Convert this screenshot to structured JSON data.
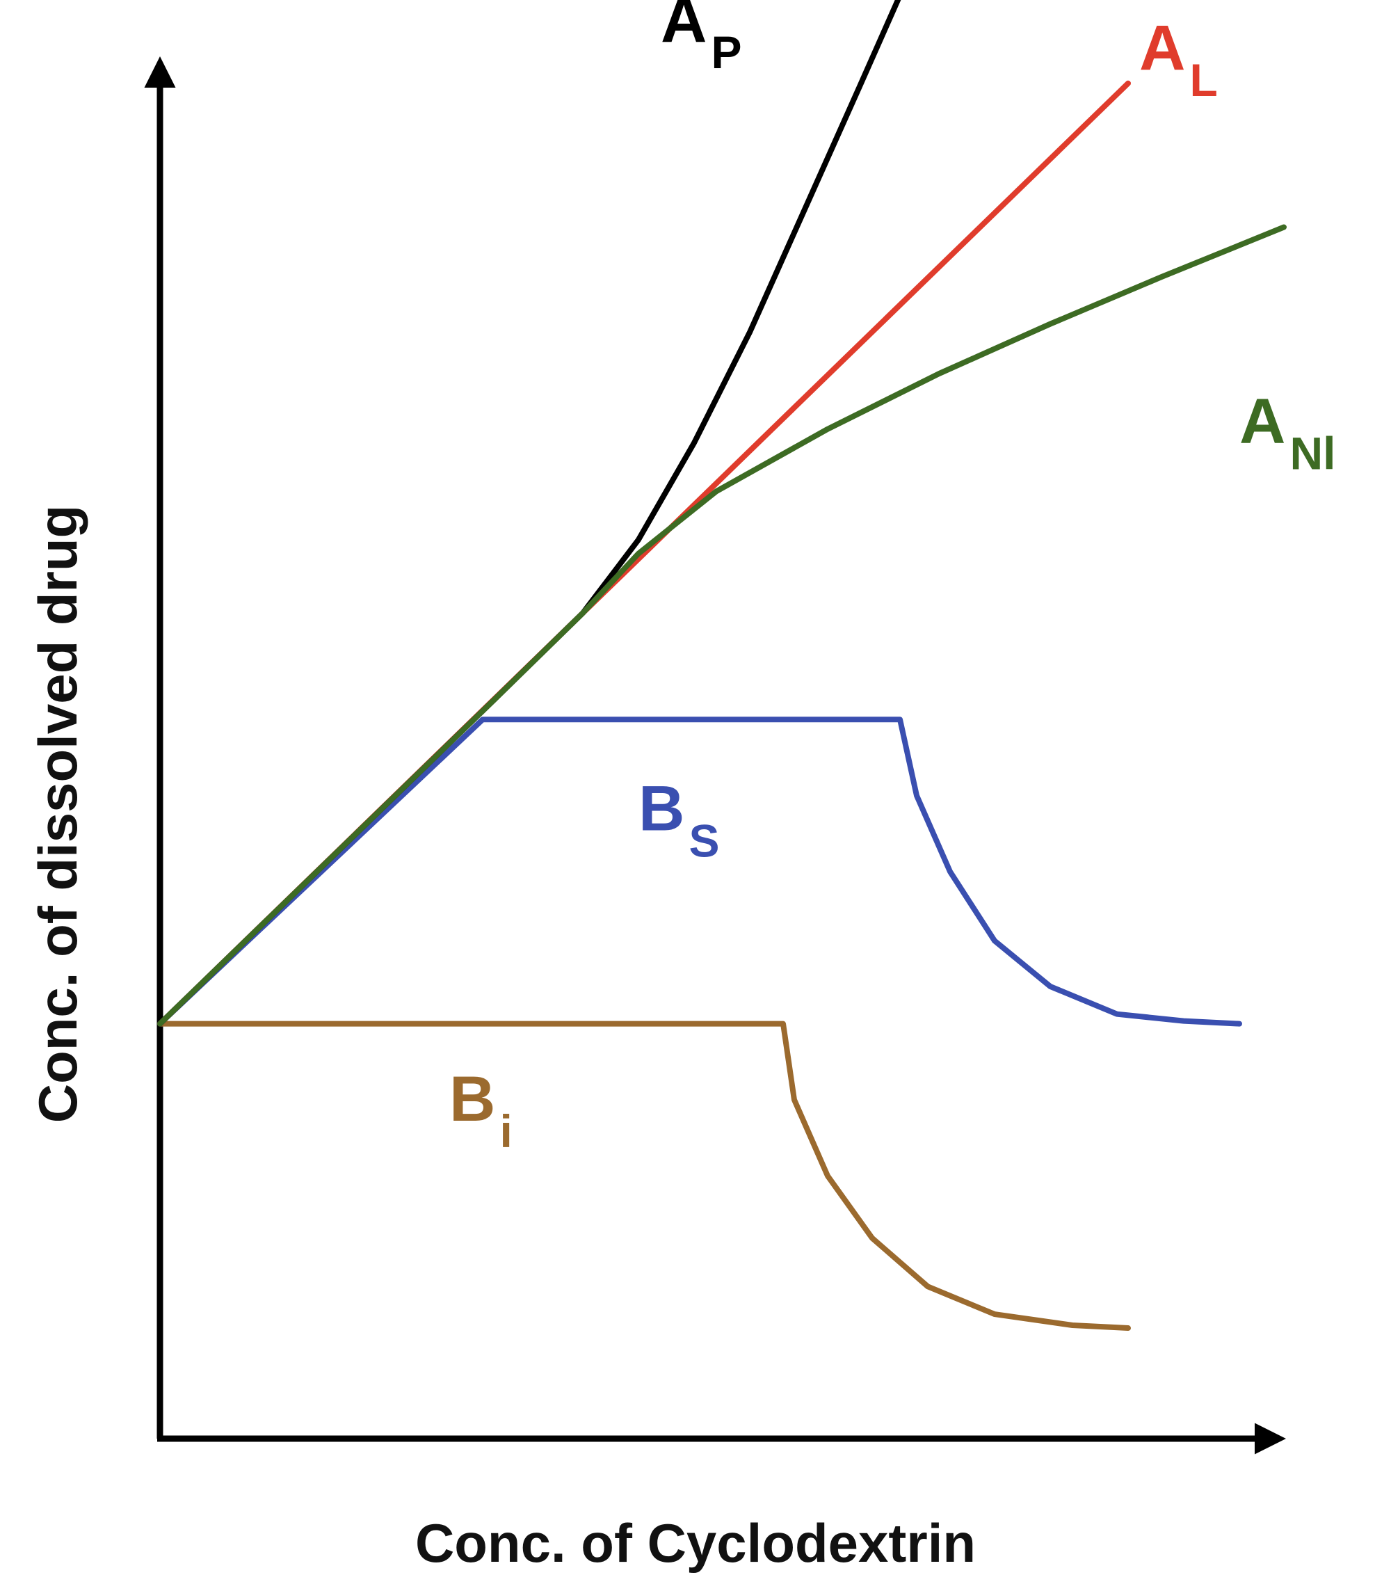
{
  "chart_data": {
    "type": "line",
    "title": "",
    "xlabel": "Conc. of Cyclodextrin",
    "ylabel": "Conc. of dissolved drug",
    "xlim": [
      0,
      10
    ],
    "ylim": [
      0,
      10
    ],
    "grid": false,
    "legend": "none",
    "series": [
      {
        "name": "A",
        "subscript": "P",
        "color": "#000000",
        "points": [
          [
            0,
            3
          ],
          [
            1,
            3.78
          ],
          [
            2,
            4.56
          ],
          [
            3,
            5.34
          ],
          [
            3.8,
            5.97
          ],
          [
            4.3,
            6.5
          ],
          [
            4.8,
            7.2
          ],
          [
            5.3,
            8.0
          ],
          [
            5.8,
            8.9
          ],
          [
            6.3,
            9.8
          ],
          [
            6.85,
            10.8
          ]
        ]
      },
      {
        "name": "A",
        "subscript": "L",
        "color": "#e03c2c",
        "points": [
          [
            0,
            3
          ],
          [
            8.7,
            9.8
          ]
        ]
      },
      {
        "name": "A",
        "subscript": "Nl",
        "color": "#3d6b23",
        "points": [
          [
            0,
            3
          ],
          [
            1,
            3.78
          ],
          [
            2,
            4.56
          ],
          [
            3,
            5.34
          ],
          [
            3.8,
            5.97
          ],
          [
            4.3,
            6.4
          ],
          [
            5,
            6.85
          ],
          [
            6,
            7.3
          ],
          [
            7,
            7.7
          ],
          [
            8,
            8.06
          ],
          [
            9,
            8.4
          ],
          [
            10.1,
            8.76
          ]
        ]
      },
      {
        "name": "B",
        "subscript": "S",
        "color": "#3a4fb0",
        "points": [
          [
            0,
            3
          ],
          [
            2.9,
            5.2
          ],
          [
            6.65,
            5.2
          ],
          [
            6.8,
            4.65
          ],
          [
            7.1,
            4.1
          ],
          [
            7.5,
            3.6
          ],
          [
            8,
            3.27
          ],
          [
            8.6,
            3.07
          ],
          [
            9.2,
            3.02
          ],
          [
            9.7,
            3.0
          ]
        ]
      },
      {
        "name": "B",
        "subscript": "i",
        "color": "#9b6a2e",
        "points": [
          [
            0,
            3
          ],
          [
            5.6,
            3
          ],
          [
            5.7,
            2.45
          ],
          [
            6,
            1.9
          ],
          [
            6.4,
            1.45
          ],
          [
            6.9,
            1.1
          ],
          [
            7.5,
            0.9
          ],
          [
            8.2,
            0.82
          ],
          [
            8.7,
            0.8
          ]
        ]
      }
    ],
    "labels": [
      {
        "series": 0,
        "x": 4.5,
        "y": 10.1
      },
      {
        "series": 1,
        "x": 8.8,
        "y": 9.9
      },
      {
        "series": 2,
        "x": 9.7,
        "y": 7.2
      },
      {
        "series": 3,
        "x": 4.3,
        "y": 4.4
      },
      {
        "series": 4,
        "x": 2.6,
        "y": 2.3
      }
    ]
  }
}
